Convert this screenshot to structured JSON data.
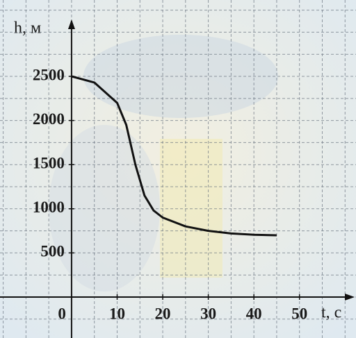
{
  "chart_data": {
    "type": "line",
    "xlabel": "t, с",
    "ylabel": "h, м",
    "x": [
      0,
      5,
      10,
      12,
      14,
      16,
      18,
      20,
      25,
      30,
      35,
      40,
      45
    ],
    "series": [
      {
        "color": "#111111",
        "values": [
          2500,
          2430,
          2200,
          1950,
          1500,
          1150,
          980,
          900,
          800,
          750,
          720,
          705,
          700
        ]
      }
    ],
    "xlim": [
      -15.7,
      62.4
    ],
    "ylim": [
      -464,
      3365
    ],
    "xticks": [
      0,
      10,
      20,
      30,
      40,
      50
    ],
    "yticks": [
      500,
      1000,
      1500,
      2000,
      2500
    ],
    "grid": true
  }
}
